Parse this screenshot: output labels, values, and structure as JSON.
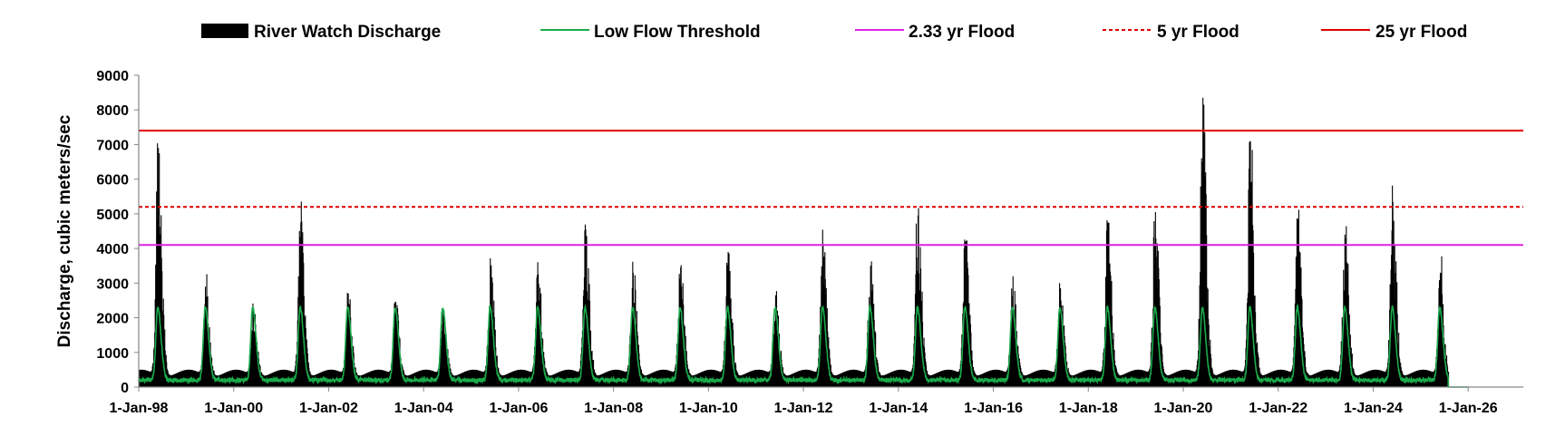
{
  "chart_data": {
    "type": "area",
    "xlabel": "",
    "ylabel": "Discharge, cubic meters/sec",
    "ylim": [
      0,
      9000
    ],
    "y_ticks": [
      0,
      1000,
      2000,
      3000,
      4000,
      5000,
      6000,
      7000,
      8000,
      9000
    ],
    "xlim": [
      "1998-01-01",
      "2027-03-01"
    ],
    "x_ticks": [
      "1-Jan-98",
      "1-Jan-00",
      "1-Jan-02",
      "1-Jan-04",
      "1-Jan-06",
      "1-Jan-08",
      "1-Jan-10",
      "1-Jan-12",
      "1-Jan-14",
      "1-Jan-16",
      "1-Jan-18",
      "1-Jan-20",
      "1-Jan-22",
      "1-Jan-24",
      "1-Jan-26"
    ],
    "grid": false,
    "legend_position": "top",
    "series": [
      {
        "name": "River Watch Discharge",
        "style": "area",
        "color": "#000000",
        "annual_peaks": [
          {
            "year": 1998,
            "peak": 6900
          },
          {
            "year": 1999,
            "peak": 2600
          },
          {
            "year": 2000,
            "peak": 2200
          },
          {
            "year": 2001,
            "peak": 4750
          },
          {
            "year": 2002,
            "peak": 2700
          },
          {
            "year": 2003,
            "peak": 2450
          },
          {
            "year": 2004,
            "peak": 2150
          },
          {
            "year": 2005,
            "peak": 3400
          },
          {
            "year": 2006,
            "peak": 3250
          },
          {
            "year": 2007,
            "peak": 4550
          },
          {
            "year": 2008,
            "peak": 3300
          },
          {
            "year": 2009,
            "peak": 3450
          },
          {
            "year": 2010,
            "peak": 3900
          },
          {
            "year": 2011,
            "peak": 2650
          },
          {
            "year": 2012,
            "peak": 4100
          },
          {
            "year": 2013,
            "peak": 3500
          },
          {
            "year": 2014,
            "peak": 4950
          },
          {
            "year": 2015,
            "peak": 4200
          },
          {
            "year": 2016,
            "peak": 3200
          },
          {
            "year": 2017,
            "peak": 2850
          },
          {
            "year": 2018,
            "peak": 4750
          },
          {
            "year": 2019,
            "peak": 5050
          },
          {
            "year": 2020,
            "peak": 8350
          },
          {
            "year": 2021,
            "peak": 7100
          },
          {
            "year": 2022,
            "peak": 4850
          },
          {
            "year": 2023,
            "peak": 4300
          },
          {
            "year": 2024,
            "peak": 5350
          },
          {
            "year": 2025,
            "peak": 3300
          }
        ],
        "data_end": "2025-08-01"
      },
      {
        "name": "Low Flow Threshold",
        "style": "line",
        "color": "#1aaa4a",
        "annual_peak": 2300,
        "minimum": 200,
        "data_end": "2025-08-01",
        "zero_until": "2026-01-01"
      },
      {
        "name": "2.33 yr Flood",
        "style": "hline",
        "color": "#e020e0",
        "dashed": false,
        "y": 4100
      },
      {
        "name": "5 yr Flood",
        "style": "hline",
        "color": "#e00000",
        "dashed": true,
        "y": 5200
      },
      {
        "name": "25 yr Flood",
        "style": "hline",
        "color": "#e00000",
        "dashed": false,
        "y": 7400
      }
    ]
  }
}
